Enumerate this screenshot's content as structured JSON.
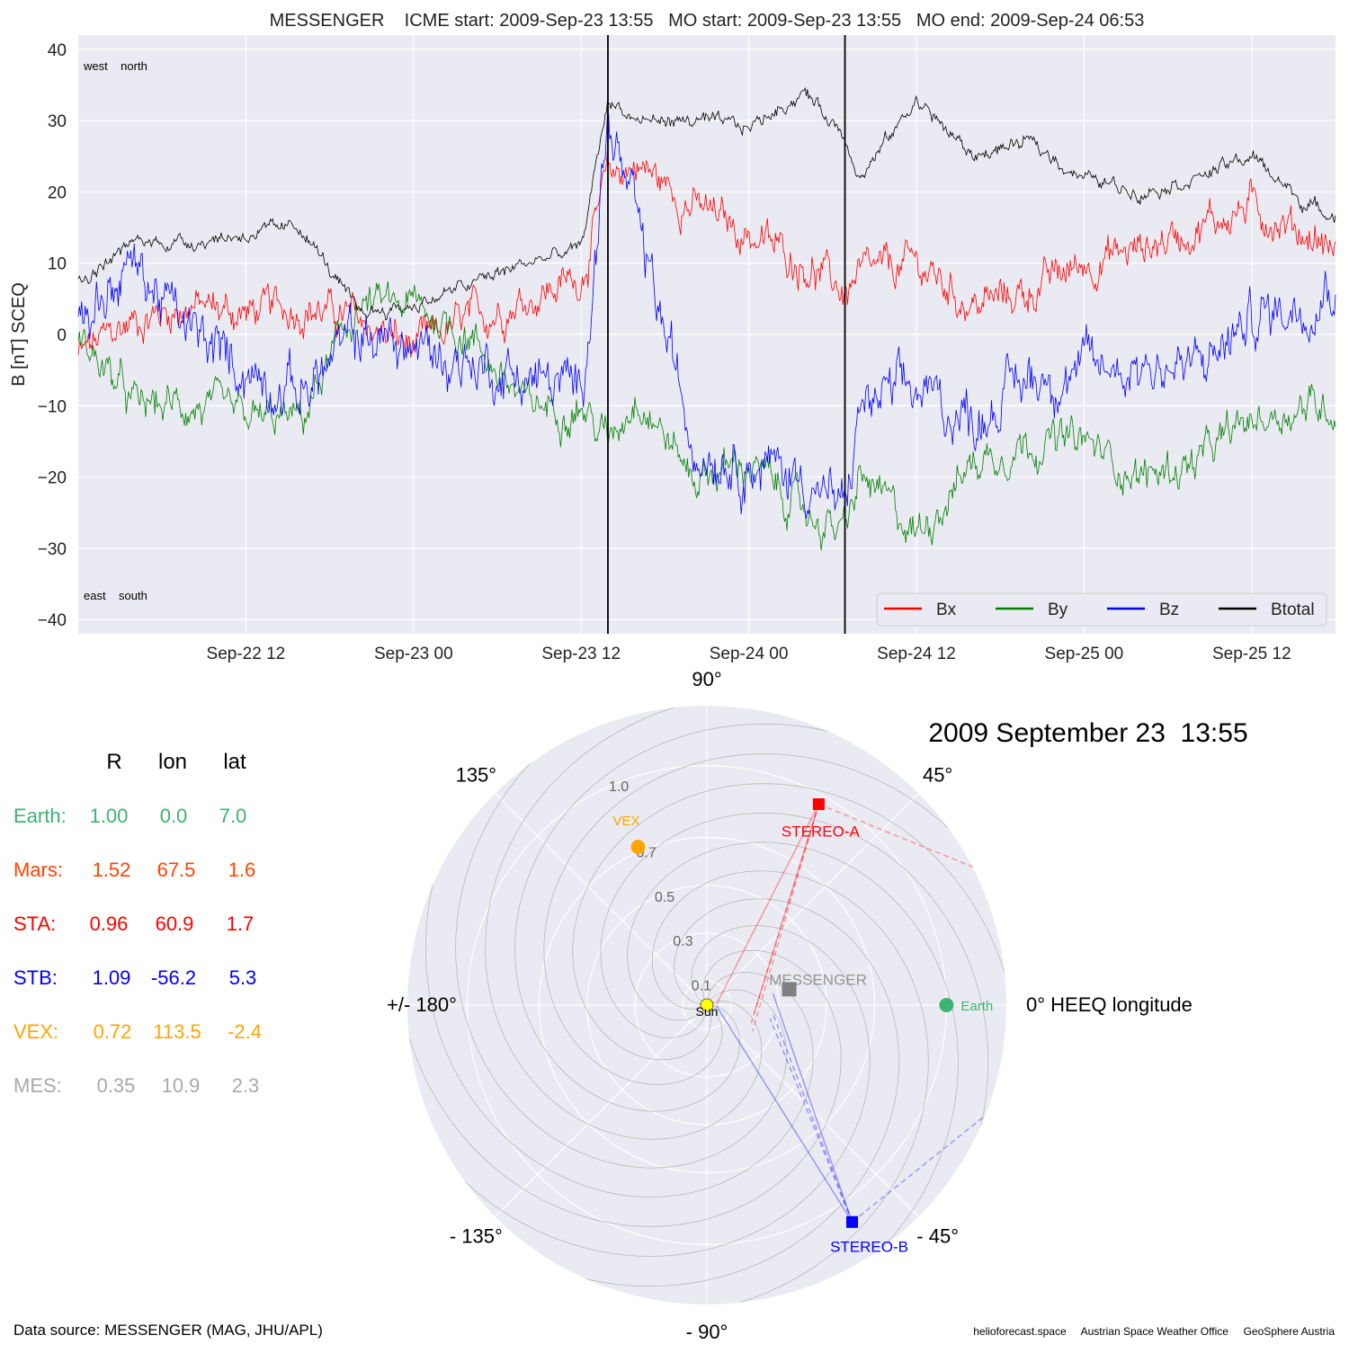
{
  "chart_data": [
    {
      "type": "line",
      "title": "MESSENGER    ICME start: 2009-Sep-23 13:55   MO start: 2009-Sep-23 13:55   MO end: 2009-Sep-24 06:53",
      "ylabel": "B [nT] SCEQ",
      "ylim": [
        -42,
        42
      ],
      "xlim": [
        "2009-09-22 00:00",
        "2009-09-25 18:00"
      ],
      "yticks": [
        -40,
        -30,
        -20,
        -10,
        0,
        10,
        20,
        30,
        40
      ],
      "ytick_labels": [
        "−40",
        "−30",
        "−20",
        "−10",
        "0",
        "10",
        "20",
        "30",
        "40"
      ],
      "xticks": [
        "2009-09-22 12:00",
        "2009-09-23 00:00",
        "2009-09-23 12:00",
        "2009-09-24 00:00",
        "2009-09-24 12:00",
        "2009-09-25 00:00",
        "2009-09-25 12:00"
      ],
      "xtick_labels": [
        "Sep-22 12",
        "Sep-23 00",
        "Sep-23 12",
        "Sep-24 00",
        "Sep-24 12",
        "Sep-25 00",
        "Sep-25 12"
      ],
      "grid": true,
      "legend_placement": "lower-right",
      "corner_labels": {
        "top": "west    north",
        "bottom": "east    south"
      },
      "vlines": [
        "2009-09-23 13:55",
        "2009-09-24 06:53"
      ],
      "x": [
        "2009-09-22 00:00",
        "2009-09-22 04:00",
        "2009-09-22 08:00",
        "2009-09-22 12:00",
        "2009-09-22 16:00",
        "2009-09-22 20:00",
        "2009-09-23 00:00",
        "2009-09-23 04:00",
        "2009-09-23 08:00",
        "2009-09-23 12:00",
        "2009-09-23 13:55",
        "2009-09-23 16:00",
        "2009-09-23 20:00",
        "2009-09-24 00:00",
        "2009-09-24 04:00",
        "2009-09-24 06:53",
        "2009-09-24 08:00",
        "2009-09-24 12:00",
        "2009-09-24 16:00",
        "2009-09-24 20:00",
        "2009-09-25 00:00",
        "2009-09-25 04:00",
        "2009-09-25 08:00",
        "2009-09-25 12:00",
        "2009-09-25 16:00",
        "2009-09-25 18:00"
      ],
      "series": [
        {
          "name": "Bx",
          "color": "#ff0000",
          "values": [
            -3,
            2,
            4,
            3,
            4,
            2,
            -2,
            2,
            5,
            8,
            22,
            24,
            18,
            14,
            10,
            6,
            8,
            10,
            4,
            6,
            10,
            12,
            15,
            18,
            14,
            12
          ]
        },
        {
          "name": "By",
          "color": "#008000",
          "values": [
            0,
            -10,
            -10,
            -12,
            -12,
            4,
            4,
            0,
            -10,
            -10,
            -15,
            -8,
            -20,
            -18,
            -25,
            -28,
            -20,
            -28,
            -18,
            -15,
            -15,
            -20,
            -18,
            -12,
            -10,
            -10
          ]
        },
        {
          "name": "Bz",
          "color": "#0000ff",
          "values": [
            2,
            10,
            0,
            -5,
            -8,
            0,
            -2,
            -4,
            -6,
            -8,
            30,
            15,
            -15,
            -18,
            -20,
            -25,
            -10,
            -8,
            -12,
            -6,
            -5,
            -4,
            -5,
            2,
            5,
            8
          ]
        },
        {
          "name": "Btotal",
          "color": "#000000",
          "values": [
            7,
            13,
            13,
            14,
            15,
            3,
            4,
            7,
            10,
            12,
            33,
            30,
            30,
            29,
            34,
            28,
            22,
            33,
            25,
            27,
            22,
            20,
            22,
            25,
            18,
            17
          ]
        }
      ]
    },
    {
      "type": "scatter",
      "subtype": "polar",
      "title": "2009 September 23  13:55",
      "angle_labels": [
        "0° HEEQ longitude",
        "45°",
        "90°",
        "135°",
        "+/- 180°",
        "- 135°",
        "- 90°",
        "- 45°"
      ],
      "radial_ticks": [
        0.1,
        0.3,
        0.5,
        0.7,
        1.0
      ],
      "radial_tick_labels": [
        "0.1",
        "0.3",
        "0.5",
        "0.7",
        "1.0"
      ],
      "rmax": 1.25,
      "points": [
        {
          "name": "Sun",
          "r": 0,
          "lon": 0,
          "color": "#ffff00",
          "marker": "circle"
        },
        {
          "name": "Earth",
          "r": 1.0,
          "lon": 0.0,
          "color": "#3cb371",
          "marker": "circle"
        },
        {
          "name": "STEREO-A",
          "r": 0.96,
          "lon": 60.9,
          "color": "#ff0000",
          "marker": "square"
        },
        {
          "name": "STEREO-B",
          "r": 1.09,
          "lon": -56.2,
          "color": "#0000ff",
          "marker": "square"
        },
        {
          "name": "VEX",
          "r": 0.72,
          "lon": 113.5,
          "color": "#ffa500",
          "marker": "circle"
        },
        {
          "name": "MESSENGER",
          "r": 0.35,
          "lon": 10.9,
          "color": "#808080",
          "marker": "square"
        }
      ]
    },
    {
      "type": "table",
      "columns": [
        "R",
        "lon",
        "lat"
      ],
      "rows": [
        {
          "name": "Earth:",
          "color": "#3cb371",
          "values": [
            "1.00",
            "0.0",
            "7.0"
          ]
        },
        {
          "name": "Mars:",
          "color": "#ff4500",
          "values": [
            "1.52",
            "67.5",
            "1.6"
          ]
        },
        {
          "name": "STA:",
          "color": "#ff0000",
          "values": [
            "0.96",
            "60.9",
            "1.7"
          ]
        },
        {
          "name": "STB:",
          "color": "#0000ff",
          "values": [
            "1.09",
            "-56.2",
            "5.3"
          ]
        },
        {
          "name": "VEX:",
          "color": "#ffa500",
          "values": [
            "0.72",
            "113.5",
            "-2.4"
          ]
        },
        {
          "name": "MES:",
          "color": "#a9a9a9",
          "values": [
            "0.35",
            "10.9",
            "2.3"
          ]
        }
      ]
    }
  ],
  "footer": {
    "data_source": "Data source: MESSENGER (MAG, JHU/APL)",
    "credits": "helioforecast.space     Austrian Space Weather Office     GeoSphere Austria"
  }
}
